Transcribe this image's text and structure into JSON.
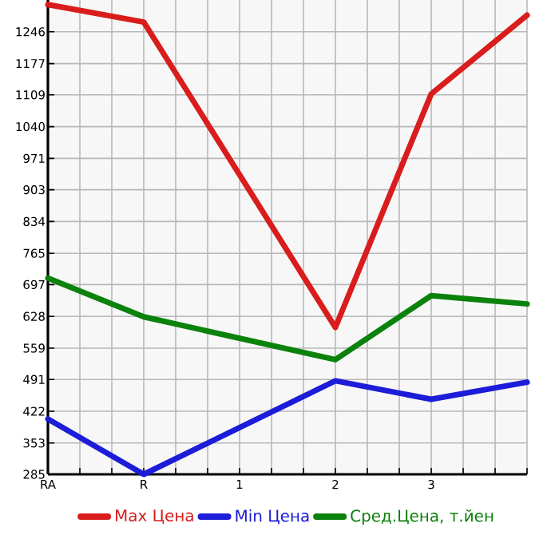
{
  "chart_data": {
    "type": "line",
    "categories": [
      "RA",
      "R",
      "1",
      "2",
      "3",
      null
    ],
    "series": [
      {
        "name": "Max Цена",
        "color": "#d91c1c",
        "values": [
          1305,
          1267,
          null,
          604,
          1111,
          1282
        ]
      },
      {
        "name": "Min Цена",
        "color": "#1c1cd9",
        "values": [
          405,
          285,
          null,
          488,
          448,
          485
        ]
      },
      {
        "name": "Сред.Цена, т.йен",
        "color": "#0b820b",
        "values": [
          711,
          627,
          null,
          534,
          673,
          655
        ]
      }
    ],
    "ylim": [
      285,
      1315
    ],
    "yticks": [
      285,
      353,
      422,
      491,
      559,
      628,
      697,
      765,
      834,
      903,
      971,
      1040,
      1109,
      1177,
      1246
    ],
    "grid": true,
    "legend": "bottom",
    "marker": "none",
    "line_style": "solid"
  }
}
